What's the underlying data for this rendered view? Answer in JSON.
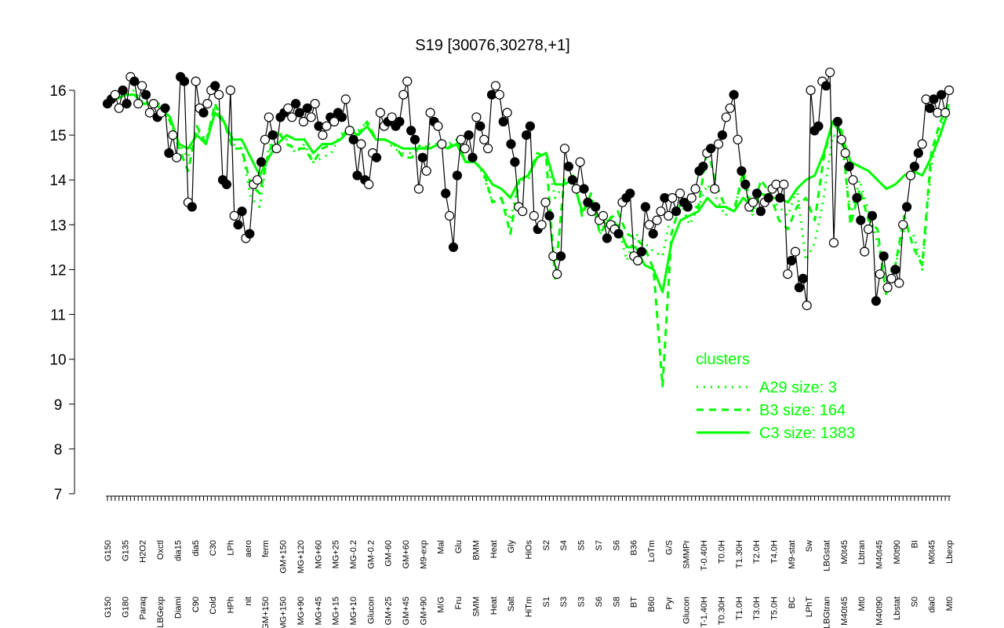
{
  "chart_data": {
    "type": "line",
    "title": "S19 [30076,30278,+1]",
    "xlabel": "",
    "ylabel": "",
    "ylim": [
      7,
      16.5
    ],
    "yticks": [
      7,
      8,
      9,
      10,
      11,
      12,
      13,
      14,
      15,
      16
    ],
    "grid": false,
    "legend_position": "right",
    "legend_title": "clusters",
    "colors": {
      "clusters": "#00ff00",
      "points": "#000000",
      "axis": "#000000"
    },
    "x_labels_top": [
      "G150",
      "G135",
      "H2O2",
      "Oxctl",
      "dia15",
      "dia5",
      "C30",
      "LPh",
      "aero",
      "ferm",
      "GM+150",
      "MG+120",
      "MG+60",
      "MG+25",
      "MG-0.2",
      "GM-0.2",
      "GM-60",
      "GM+60",
      "M9-exp",
      "Mal",
      "Glu",
      "BMM",
      "Heat",
      "Gly",
      "HiOs",
      "S2",
      "S4",
      "S5",
      "S7",
      "S6",
      "B36",
      "LoTm",
      "G/S",
      "SMMPr",
      "T-0.40H",
      "T0.0H",
      "T1.30H",
      "T2.0H",
      "T4.0H",
      "M9-stat",
      "Sw",
      "LBGstat",
      "M0t45",
      "Lbtran",
      "M40t45",
      "M0t90",
      "BI",
      "M0t45",
      "Lbexp"
    ],
    "x_labels_bottom": [
      "G150",
      "G180",
      "Paraq",
      "LBGexp",
      "Diami",
      "C90",
      "Cold",
      "HPh",
      "nit",
      "GM+150",
      "MG+150",
      "MG+90",
      "MG+45",
      "MG+15",
      "MG+10",
      "Glucon",
      "GM+25",
      "GM+45",
      "GM+90",
      "M/G",
      "Fru",
      "SMM",
      "Heat",
      "Salt",
      "HiTm",
      "S1",
      "S3",
      "S3",
      "S6",
      "S8",
      "BT",
      "B60",
      "Pyr",
      "Glucon",
      "T-1.40H",
      "T0.30H",
      "T1.0H",
      "T3.0H",
      "T5.0H",
      "BC",
      "LPhT",
      "LBGtran",
      "M40t45",
      "Mt0",
      "M40t90",
      "Lbstat",
      "S0",
      "dia0",
      "Mt0"
    ],
    "series": [
      {
        "name": "A29 size: 3",
        "style": "dotted",
        "values": [
          15.7,
          15.8,
          15.9,
          16.0,
          15.7,
          15.8,
          15.6,
          15.3,
          14.8,
          14.5,
          15.1,
          14.9,
          15.6,
          15.3,
          14.8,
          14.7,
          13.6,
          13.4,
          14.7,
          15.1,
          14.9,
          14.6,
          14.8,
          14.4,
          14.5,
          14.6,
          15.0,
          15.2,
          15.1,
          15.3,
          14.9,
          14.9,
          14.7,
          14.6,
          14.6,
          14.7,
          14.8,
          14.8,
          14.8,
          14.9,
          14.4,
          14.5,
          14.1,
          13.5,
          13.6,
          13.1,
          14.0,
          14.0,
          14.5,
          14.6,
          13.6,
          13.9,
          14.0,
          13.3,
          13.6,
          12.8,
          13.2,
          13.0,
          12.2,
          12.8,
          12.6,
          12.4,
          12.3,
          13.3,
          13.5,
          13.0,
          13.4,
          13.9,
          13.6,
          13.2,
          13.4,
          14.0,
          13.2,
          13.7,
          13.6,
          13.4,
          13.2,
          13.8,
          12.2,
          12.6,
          13.6,
          15.0,
          14.9,
          13.2,
          14.0,
          13.3,
          12.6,
          11.8,
          12.1,
          12.9,
          12.8,
          12.0,
          14.3,
          15.2,
          15.6
        ]
      },
      {
        "name": "B3 size: 164",
        "style": "dashed",
        "values": [
          15.8,
          15.8,
          15.9,
          15.9,
          15.7,
          15.7,
          15.7,
          15.3,
          14.7,
          14.2,
          15.2,
          14.8,
          15.7,
          15.3,
          14.7,
          14.7,
          13.9,
          13.7,
          14.6,
          15.1,
          14.8,
          14.7,
          14.7,
          14.4,
          14.7,
          14.8,
          14.9,
          15.2,
          15.0,
          15.3,
          14.9,
          14.9,
          14.8,
          14.5,
          14.5,
          14.8,
          14.7,
          14.8,
          14.7,
          14.9,
          14.4,
          14.4,
          14.2,
          13.5,
          13.6,
          12.8,
          14.0,
          14.1,
          14.6,
          14.5,
          11.8,
          14.0,
          14.1,
          13.2,
          13.7,
          12.8,
          13.1,
          13.3,
          12.8,
          12.7,
          12.5,
          12.0,
          9.4,
          12.8,
          13.5,
          13.4,
          13.4,
          14.7,
          13.9,
          13.4,
          13.3,
          14.2,
          13.3,
          14.0,
          13.7,
          13.1,
          12.9,
          13.4,
          13.6,
          13.1,
          14.5,
          15.3,
          15.1,
          13.0,
          13.8,
          13.1,
          12.9,
          11.4,
          12.1,
          13.2,
          12.5,
          12.1,
          14.6,
          15.3,
          15.7
        ]
      },
      {
        "name": "C3 size: 1383",
        "style": "solid",
        "values": [
          15.8,
          15.8,
          15.9,
          15.9,
          15.7,
          15.7,
          15.6,
          15.4,
          14.8,
          14.7,
          15.0,
          14.8,
          15.5,
          15.3,
          14.9,
          14.9,
          14.5,
          14.1,
          14.5,
          14.8,
          15.0,
          14.9,
          14.9,
          14.6,
          14.8,
          14.8,
          14.9,
          15.1,
          15.0,
          15.2,
          14.9,
          14.9,
          14.8,
          14.7,
          14.7,
          14.7,
          14.7,
          14.8,
          14.7,
          14.8,
          14.4,
          14.4,
          14.2,
          13.9,
          13.8,
          13.6,
          14.0,
          14.1,
          14.5,
          14.6,
          13.9,
          13.9,
          14.0,
          13.3,
          13.5,
          13.1,
          13.0,
          13.0,
          12.5,
          12.5,
          12.1,
          12.0,
          11.5,
          12.6,
          13.1,
          13.2,
          13.3,
          13.6,
          13.4,
          13.4,
          13.3,
          13.6,
          13.4,
          13.7,
          13.6,
          13.6,
          13.5,
          13.8,
          14.0,
          14.1,
          14.6,
          15.3,
          15.0,
          14.4,
          14.3,
          14.2,
          14.0,
          13.8,
          13.9,
          14.1,
          14.2,
          14.1,
          14.5,
          15.0,
          15.6
        ]
      }
    ],
    "points": [
      15.7,
      15.8,
      15.9,
      15.6,
      16.0,
      15.7,
      16.3,
      16.2,
      15.7,
      16.1,
      15.9,
      15.5,
      15.7,
      15.4,
      15.5,
      15.6,
      14.6,
      15.0,
      14.5,
      16.3,
      16.2,
      13.5,
      13.4,
      16.2,
      15.6,
      15.5,
      15.7,
      16.0,
      16.1,
      15.9,
      14.0,
      13.9,
      16.0,
      13.2,
      13.0,
      13.3,
      12.7,
      12.8,
      13.9,
      14.0,
      14.4,
      14.9,
      15.4,
      15.0,
      14.7,
      15.4,
      15.5,
      15.6,
      15.4,
      15.7,
      15.5,
      15.3,
      15.6,
      15.4,
      15.7,
      15.2,
      15.0,
      15.2,
      15.4,
      15.3,
      15.5,
      15.4,
      15.8,
      15.1,
      14.9,
      14.1,
      14.8,
      14.0,
      13.9,
      14.6,
      14.5,
      15.5,
      15.2,
      15.3,
      15.4,
      15.2,
      15.3,
      15.9,
      16.2,
      15.1,
      14.9,
      13.8,
      14.5,
      14.2,
      15.5,
      15.3,
      15.2,
      14.8,
      13.7,
      13.2,
      12.5,
      14.1,
      14.9,
      14.7,
      15.0,
      14.5,
      15.4,
      15.2,
      14.9,
      14.7,
      15.9,
      16.1,
      15.9,
      15.3,
      15.5,
      14.8,
      14.4,
      13.4,
      13.3,
      15.0,
      15.2,
      13.2,
      12.9,
      13.0,
      13.5,
      13.2,
      12.3,
      11.9,
      12.3,
      14.7,
      14.3,
      14.0,
      13.8,
      14.4,
      13.8,
      13.5,
      13.3,
      13.4,
      13.1,
      13.2,
      12.7,
      13.0,
      12.9,
      12.8,
      13.5,
      13.6,
      13.7,
      12.3,
      12.2,
      12.4,
      13.4,
      13.0,
      12.8,
      13.1,
      13.3,
      13.6,
      13.2,
      13.6,
      13.3,
      13.7,
      13.5,
      13.4,
      13.6,
      13.8,
      14.2,
      14.3,
      14.6,
      14.7,
      13.8,
      14.8,
      15.0,
      15.4,
      15.6,
      15.9,
      14.9,
      14.2,
      13.9,
      13.4,
      13.5,
      13.7,
      13.3,
      13.5,
      13.6,
      13.8,
      13.9,
      13.6,
      13.9,
      11.9,
      12.2,
      12.4,
      11.6,
      11.8,
      11.2,
      16.0,
      15.1,
      15.2,
      16.2,
      16.1,
      16.4,
      12.6,
      15.3,
      14.9,
      14.6,
      14.3,
      14.0,
      13.6,
      13.1,
      12.4,
      12.9,
      13.2,
      11.3,
      11.9,
      12.3,
      11.6,
      11.8,
      12.0,
      11.7,
      13.0,
      13.4,
      14.1,
      14.3,
      14.6,
      14.8,
      15.8,
      15.6,
      15.8,
      15.5,
      15.9,
      15.5,
      16.0
    ]
  }
}
